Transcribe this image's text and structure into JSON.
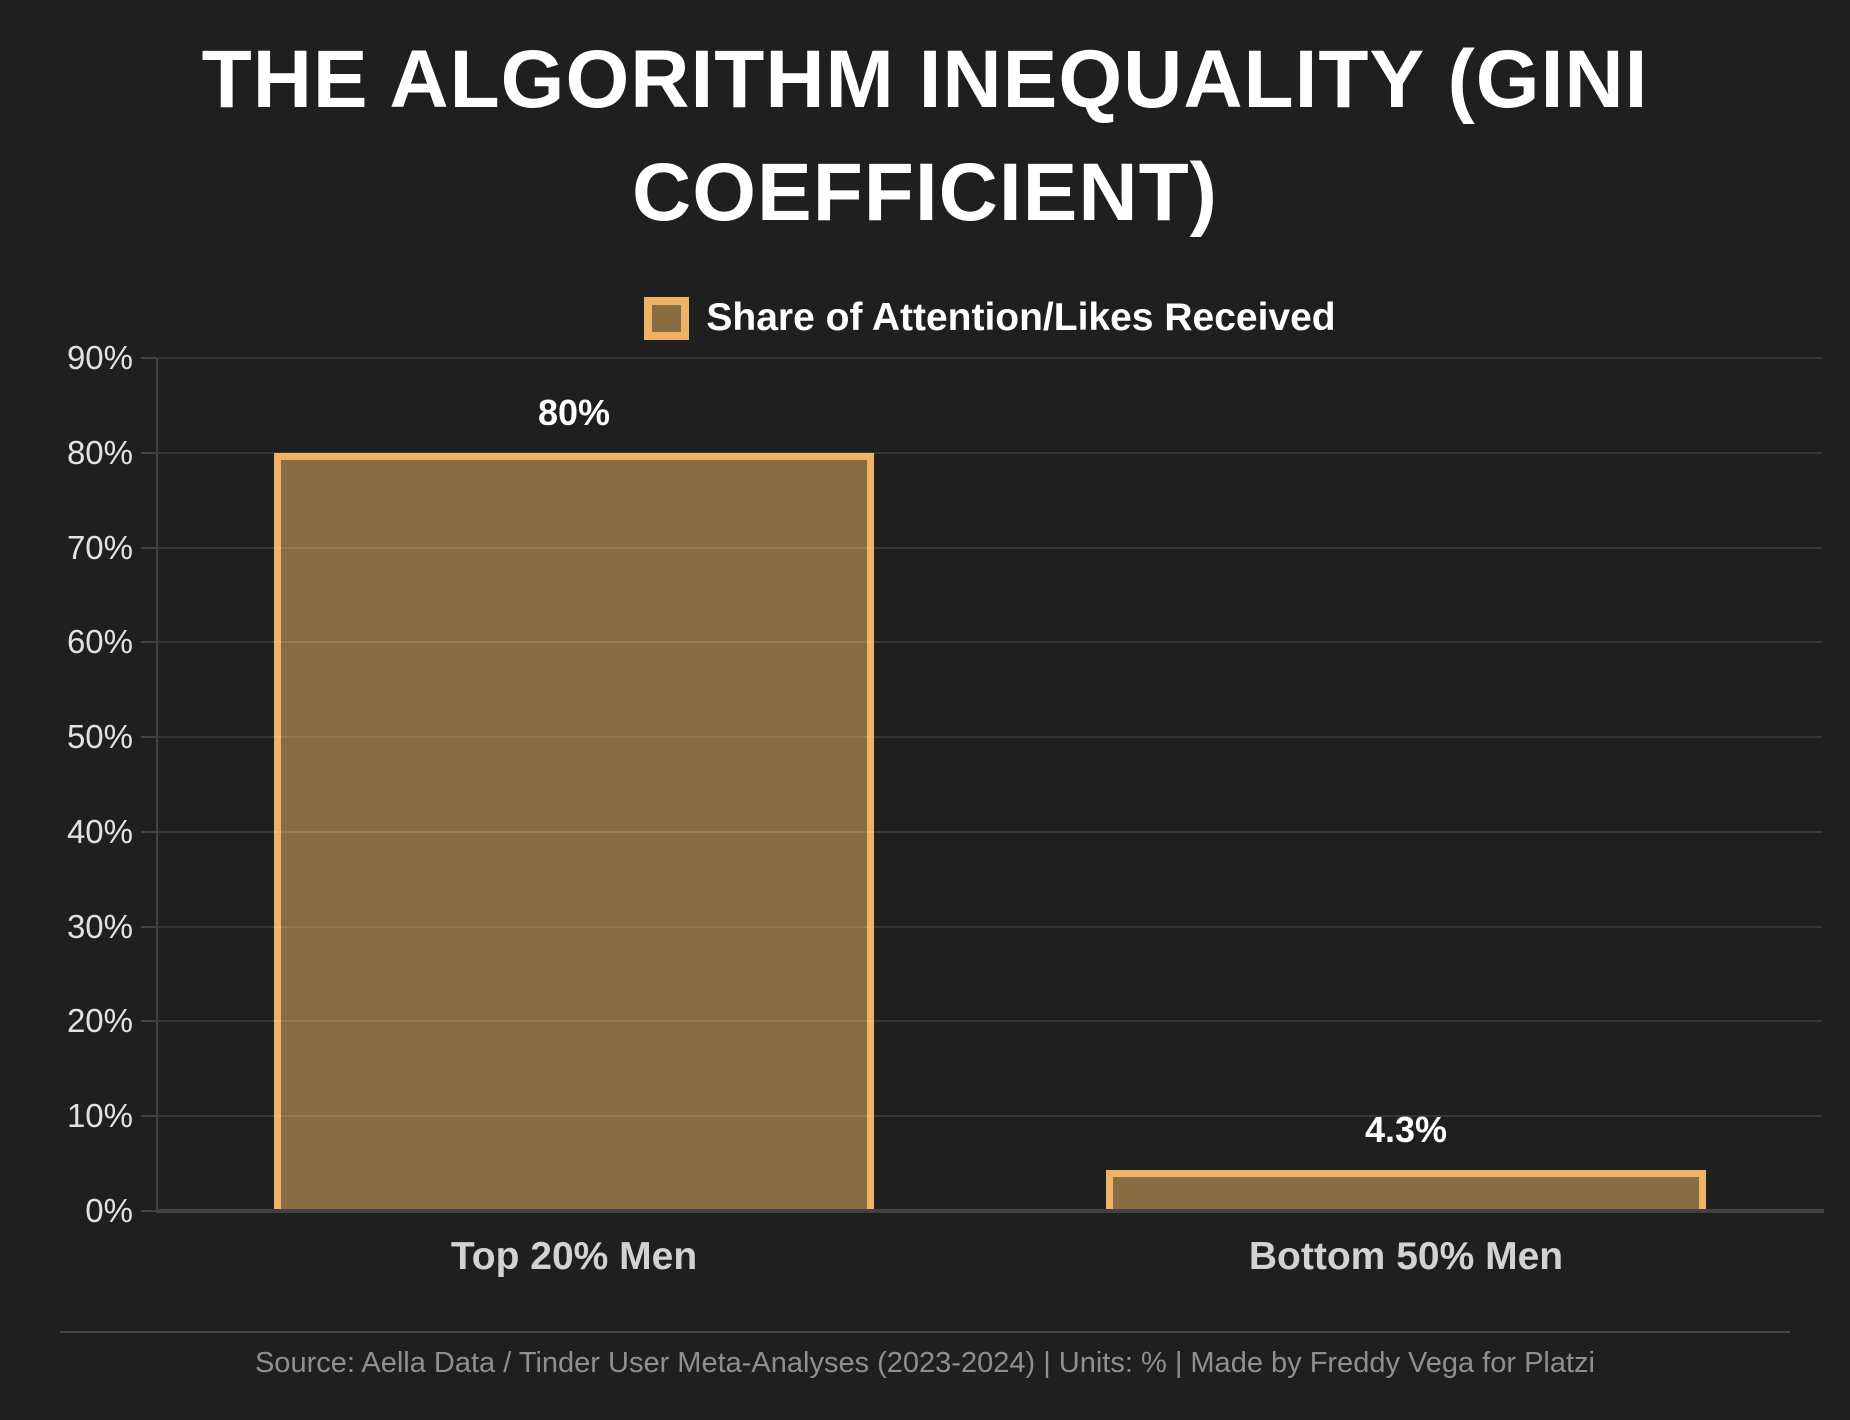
{
  "title": {
    "line1": "THE ALGORITHM INEQUALITY (GINI",
    "line2": "COEFFICIENT)"
  },
  "legend": {
    "label": "Share of Attention/Likes Received"
  },
  "footer": {
    "source_line": "Source: Aella Data / Tinder User Meta-Analyses (2023-2024) | Units: % | Made by Freddy Vega for Platzi"
  },
  "colors": {
    "background": "#1f1f1f",
    "bar_fill": "#8a6c42",
    "bar_border": "#f0b264",
    "grid": "rgba(255,255,255,0.11)",
    "axis": "#424242",
    "title_text": "#ffffff",
    "tick_text": "#e2e2e2",
    "category_text": "#d2d2d2",
    "value_text": "#ffffff",
    "footer_text": "#8f8f8f",
    "divider": "#464646"
  },
  "chart_data": {
    "type": "bar",
    "title": "THE ALGORITHM INEQUALITY (GINI COEFFICIENT)",
    "categories": [
      "Top 20% Men",
      "Bottom 50% Men"
    ],
    "series": [
      {
        "name": "Share of Attention/Likes Received",
        "values": [
          80,
          4.3
        ]
      }
    ],
    "value_labels": [
      "80%",
      "4.3%"
    ],
    "xlabel": "",
    "ylabel": "",
    "ylim": [
      0,
      90
    ],
    "ytick_labels": [
      "0%",
      "10%",
      "20%",
      "30%",
      "40%",
      "50%",
      "60%",
      "70%",
      "80%",
      "90%"
    ],
    "grid": true,
    "legend_position": "top"
  }
}
